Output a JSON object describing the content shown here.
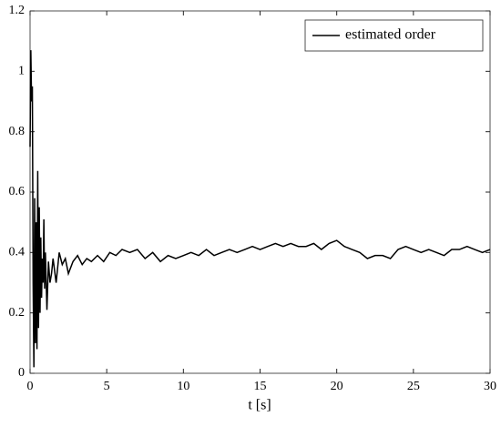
{
  "chart_data": {
    "type": "line",
    "xlabel": "t [s]",
    "x": [
      0,
      0.05,
      0.1,
      0.15,
      0.2,
      0.25,
      0.3,
      0.35,
      0.4,
      0.45,
      0.5,
      0.55,
      0.6,
      0.65,
      0.7,
      0.75,
      0.8,
      0.85,
      0.9,
      0.95,
      1.0,
      1.1,
      1.2,
      1.3,
      1.4,
      1.5,
      1.7,
      1.9,
      2.1,
      2.3,
      2.5,
      2.8,
      3.1,
      3.4,
      3.7,
      4.0,
      4.4,
      4.8,
      5.2,
      5.6,
      6.0,
      6.5,
      7.0,
      7.5,
      8.0,
      8.5,
      9.0,
      9.5,
      10,
      10.5,
      11,
      11.5,
      12,
      12.5,
      13,
      13.5,
      14,
      14.5,
      15,
      15.5,
      16,
      16.5,
      17,
      17.5,
      18,
      18.5,
      19,
      19.5,
      20,
      20.5,
      21,
      21.5,
      22,
      22.5,
      23,
      23.5,
      24,
      24.5,
      25,
      25.5,
      26,
      26.5,
      27,
      27.5,
      28,
      28.5,
      29,
      29.5,
      30
    ],
    "series": [
      {
        "name": "estimated order",
        "color": "#000000",
        "values": [
          0.75,
          1.07,
          0.9,
          0.95,
          0.3,
          0.02,
          0.58,
          0.1,
          0.5,
          0.08,
          0.67,
          0.15,
          0.55,
          0.2,
          0.45,
          0.25,
          0.38,
          0.3,
          0.51,
          0.28,
          0.4,
          0.21,
          0.37,
          0.3,
          0.33,
          0.38,
          0.3,
          0.4,
          0.36,
          0.38,
          0.33,
          0.37,
          0.39,
          0.36,
          0.38,
          0.37,
          0.39,
          0.37,
          0.4,
          0.39,
          0.41,
          0.4,
          0.41,
          0.38,
          0.4,
          0.37,
          0.39,
          0.38,
          0.39,
          0.4,
          0.39,
          0.41,
          0.39,
          0.4,
          0.41,
          0.4,
          0.41,
          0.42,
          0.41,
          0.42,
          0.43,
          0.42,
          0.43,
          0.42,
          0.42,
          0.43,
          0.41,
          0.43,
          0.44,
          0.42,
          0.41,
          0.4,
          0.38,
          0.39,
          0.39,
          0.38,
          0.41,
          0.42,
          0.41,
          0.4,
          0.41,
          0.4,
          0.39,
          0.41,
          0.41,
          0.42,
          0.41,
          0.4,
          0.41
        ]
      }
    ],
    "xlim": [
      0,
      30
    ],
    "xticks": [
      0,
      5,
      10,
      15,
      20,
      25,
      30
    ],
    "ylim": [
      0,
      1.2
    ],
    "yticks": [
      0,
      0.2,
      0.4,
      0.6,
      0.8,
      1,
      1.2
    ],
    "legend": "upper right",
    "grid": false
  }
}
